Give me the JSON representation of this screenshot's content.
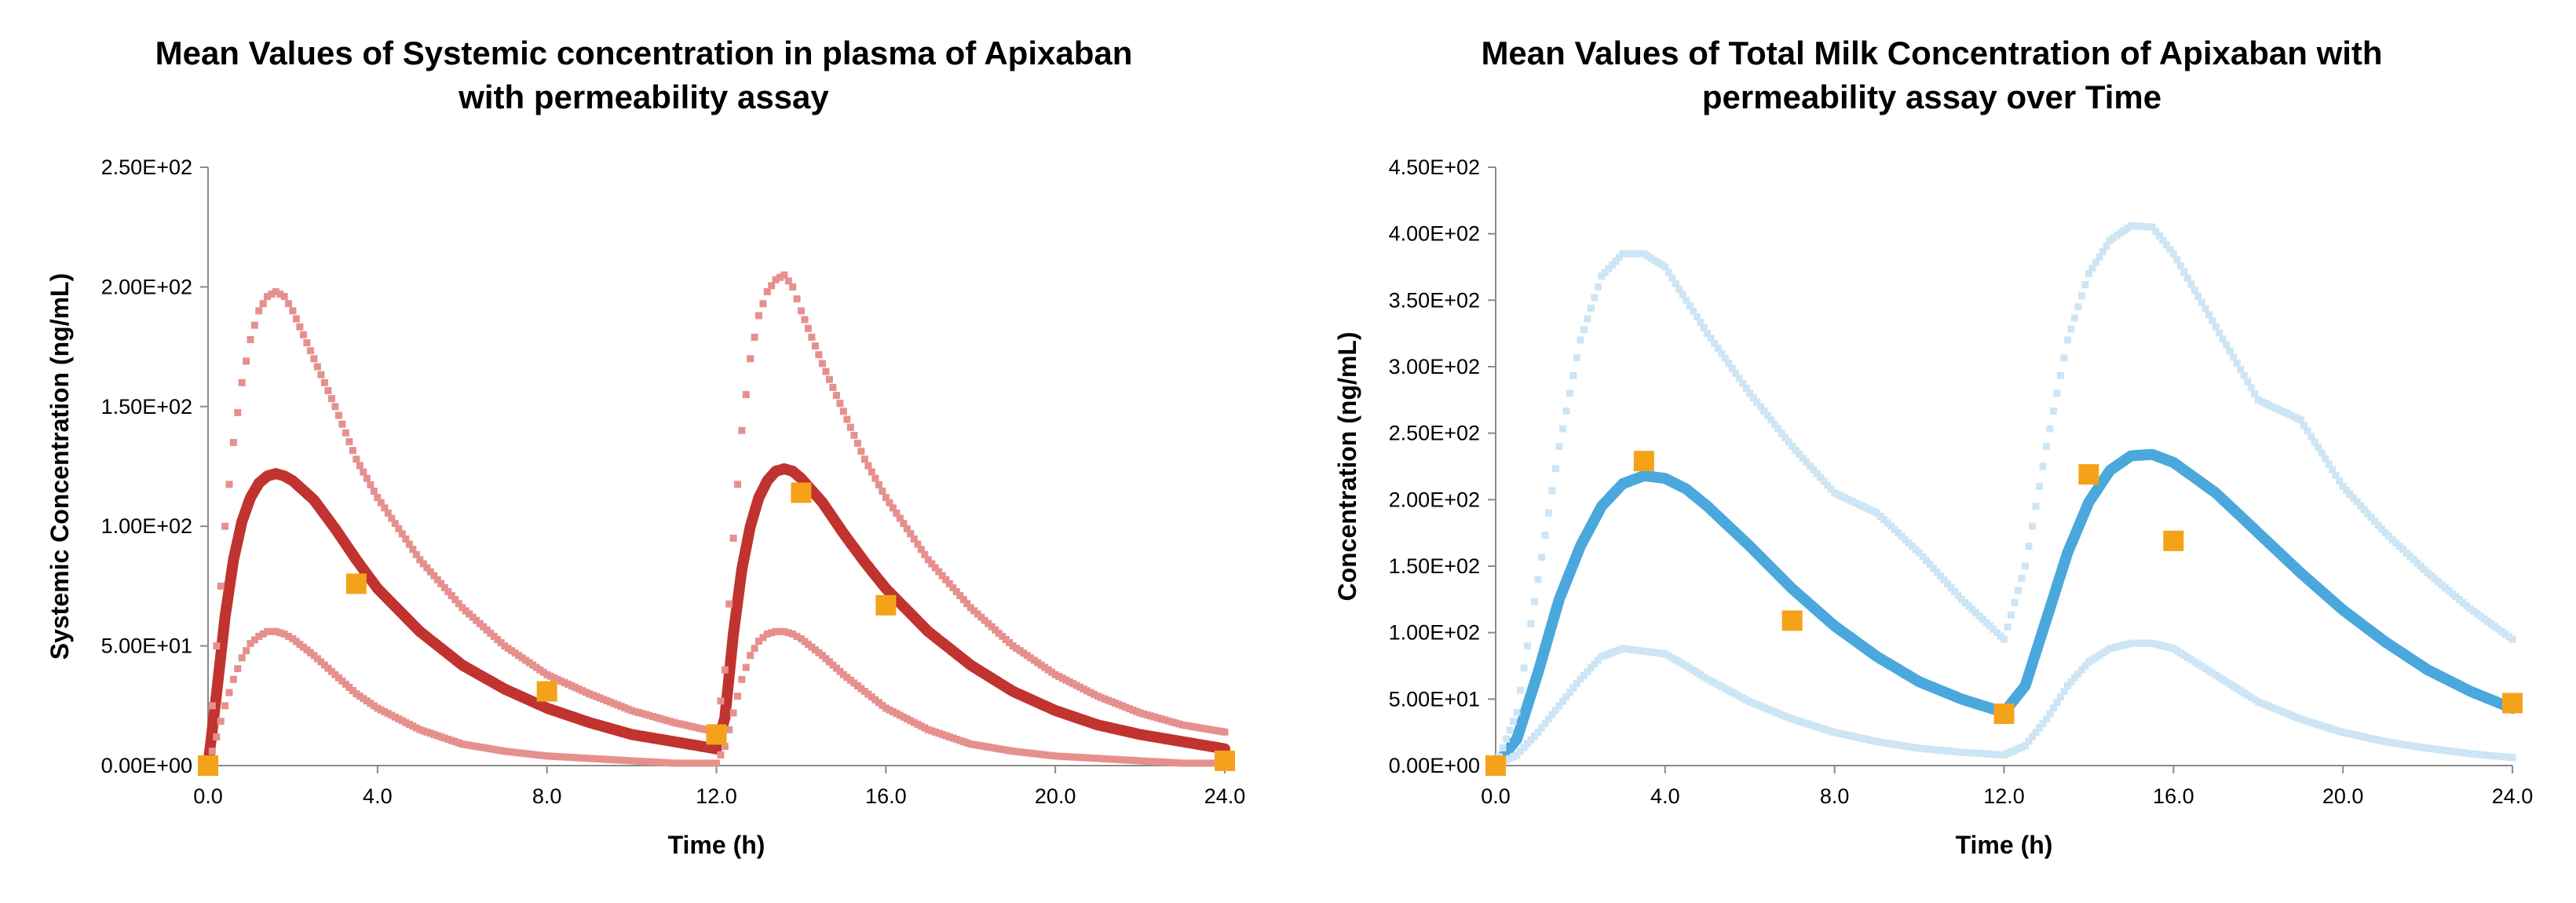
{
  "chart_data": [
    {
      "type": "line",
      "title": "Mean Values of Systemic concentration in plasma of Apixaban\nwith permeability assay",
      "xlabel": "Time (h)",
      "ylabel": "Systemic Concentration (ng/mL)",
      "xlim": [
        0,
        24
      ],
      "ylim": [
        0,
        250
      ],
      "x_ticks": [
        "0.0",
        "4.0",
        "8.0",
        "12.0",
        "16.0",
        "20.0",
        "24.0"
      ],
      "y_ticks": [
        "0.00E+00",
        "5.00E+01",
        "1.00E+02",
        "1.50E+02",
        "2.00E+02",
        "2.50E+02"
      ],
      "grid": false,
      "legend": "none",
      "colors": {
        "mean": "#C0332F",
        "bounds": "#E6908E",
        "observed": "#F5A21B"
      },
      "series": [
        {
          "role": "mean",
          "style": "thick-line",
          "color": "#C0332F",
          "x": [
            0,
            0.2,
            0.4,
            0.6,
            0.8,
            1.0,
            1.2,
            1.4,
            1.6,
            1.8,
            2.0,
            2.5,
            3.0,
            3.5,
            4.0,
            5.0,
            6.0,
            7.0,
            8.0,
            9.0,
            10.0,
            11.0,
            12.0,
            12.2,
            12.4,
            12.6,
            12.8,
            13.0,
            13.2,
            13.4,
            13.6,
            13.8,
            14.0,
            14.5,
            15.0,
            15.5,
            16.0,
            17.0,
            18.0,
            19.0,
            20.0,
            21.0,
            22.0,
            23.0,
            24.0
          ],
          "y": [
            0,
            30,
            62,
            86,
            102,
            112,
            118,
            121,
            122,
            121,
            119,
            111,
            99,
            86,
            74,
            56,
            42,
            32,
            24,
            18,
            13,
            10,
            7,
            20,
            55,
            82,
            100,
            112,
            119,
            123,
            124,
            123,
            120,
            110,
            97,
            85,
            74,
            56,
            42,
            31,
            23,
            17,
            13,
            10,
            7
          ]
        },
        {
          "role": "upper",
          "style": "dotted",
          "color": "#E6908E",
          "x": [
            0,
            0.2,
            0.4,
            0.6,
            0.8,
            1.0,
            1.2,
            1.4,
            1.6,
            1.8,
            2.0,
            2.5,
            3.0,
            3.5,
            4.0,
            5.0,
            6.0,
            7.0,
            8.0,
            9.0,
            10.0,
            11.0,
            12.0,
            12.2,
            12.4,
            12.6,
            12.8,
            13.0,
            13.2,
            13.4,
            13.6,
            13.8,
            14.0,
            14.5,
            15.0,
            15.5,
            16.0,
            17.0,
            18.0,
            19.0,
            20.0,
            21.0,
            22.0,
            23.0,
            24.0
          ],
          "y": [
            0,
            50,
            100,
            135,
            160,
            178,
            190,
            196,
            198,
            196,
            190,
            170,
            150,
            128,
            112,
            86,
            66,
            50,
            38,
            30,
            23,
            18,
            14,
            40,
            95,
            140,
            170,
            188,
            198,
            203,
            205,
            200,
            190,
            168,
            148,
            128,
            112,
            86,
            66,
            50,
            38,
            29,
            22,
            17,
            14
          ]
        },
        {
          "role": "lower",
          "style": "dotted",
          "color": "#E6908E",
          "x": [
            0,
            0.2,
            0.4,
            0.6,
            0.8,
            1.0,
            1.2,
            1.4,
            1.6,
            1.8,
            2.0,
            2.5,
            3.0,
            3.5,
            4.0,
            5.0,
            6.0,
            7.0,
            8.0,
            9.0,
            10.0,
            11.0,
            12.0,
            12.2,
            12.4,
            12.6,
            12.8,
            13.0,
            13.2,
            13.4,
            13.6,
            13.8,
            14.0,
            14.5,
            15.0,
            15.5,
            16.0,
            17.0,
            18.0,
            19.0,
            20.0,
            21.0,
            22.0,
            23.0,
            24.0
          ],
          "y": [
            0,
            12,
            25,
            36,
            45,
            51,
            54,
            56,
            56,
            55,
            53,
            46,
            38,
            30,
            24,
            15,
            9,
            6,
            4,
            3,
            2,
            1,
            1,
            8,
            22,
            36,
            46,
            52,
            55,
            56,
            56,
            55,
            53,
            46,
            38,
            31,
            24,
            15,
            9,
            6,
            4,
            3,
            2,
            1,
            1
          ]
        },
        {
          "role": "observed",
          "style": "square-markers",
          "color": "#F5A21B",
          "x": [
            0,
            3.5,
            8.0,
            12.0,
            14.0,
            16.0,
            24.0
          ],
          "y": [
            0,
            76,
            31,
            13,
            114,
            67,
            2
          ]
        }
      ]
    },
    {
      "type": "line",
      "title": "Mean Values of Total Milk Concentration of Apixaban with\npermeability assay  over Time",
      "xlabel": "Time (h)",
      "ylabel": "Concentration (ng/mL)",
      "xlim": [
        0,
        24
      ],
      "ylim": [
        0,
        450
      ],
      "x_ticks": [
        "0.0",
        "4.0",
        "8.0",
        "12.0",
        "16.0",
        "20.0",
        "24.0"
      ],
      "y_ticks": [
        "0.00E+00",
        "5.00E+01",
        "1.00E+02",
        "1.50E+02",
        "2.00E+02",
        "2.50E+02",
        "3.00E+02",
        "3.50E+02",
        "4.00E+02",
        "4.50E+02"
      ],
      "grid": false,
      "legend": "none",
      "colors": {
        "mean": "#4AA8DC",
        "bounds": "#CDE5F4",
        "observed": "#F5A21B"
      },
      "series": [
        {
          "role": "mean",
          "style": "thick-line",
          "color": "#4AA8DC",
          "x": [
            0,
            0.5,
            1.0,
            1.5,
            2.0,
            2.5,
            3.0,
            3.5,
            4.0,
            4.5,
            5.0,
            6.0,
            7.0,
            8.0,
            9.0,
            10.0,
            11.0,
            12.0,
            12.5,
            13.0,
            13.5,
            14.0,
            14.5,
            15.0,
            15.5,
            16.0,
            17.0,
            18.0,
            19.0,
            20.0,
            21.0,
            22.0,
            23.0,
            24.0
          ],
          "y": [
            0,
            20,
            70,
            125,
            165,
            195,
            212,
            218,
            216,
            208,
            195,
            165,
            133,
            105,
            82,
            63,
            50,
            40,
            60,
            110,
            160,
            198,
            222,
            233,
            234,
            228,
            205,
            175,
            145,
            117,
            93,
            72,
            56,
            43
          ]
        },
        {
          "role": "upper",
          "style": "dotted",
          "color": "#CDE5F4",
          "x": [
            0,
            0.5,
            1.0,
            1.5,
            2.0,
            2.5,
            3.0,
            3.5,
            4.0,
            4.5,
            5.0,
            6.0,
            7.0,
            8.0,
            9.0,
            10.0,
            11.0,
            12.0,
            12.5,
            13.0,
            13.5,
            14.0,
            14.5,
            15.0,
            15.5,
            16.0,
            17.0,
            18.0,
            19.0,
            20.0,
            21.0,
            22.0,
            23.0,
            24.0
          ],
          "y": [
            0,
            40,
            140,
            240,
            320,
            368,
            385,
            385,
            375,
            350,
            325,
            280,
            240,
            205,
            190,
            160,
            125,
            95,
            150,
            240,
            320,
            370,
            395,
            406,
            405,
            385,
            330,
            275,
            260,
            210,
            175,
            145,
            118,
            95
          ]
        },
        {
          "role": "lower",
          "style": "dotted",
          "color": "#CDE5F4",
          "x": [
            0,
            0.5,
            1.0,
            1.5,
            2.0,
            2.5,
            3.0,
            3.5,
            4.0,
            4.5,
            5.0,
            6.0,
            7.0,
            8.0,
            9.0,
            10.0,
            11.0,
            12.0,
            12.5,
            13.0,
            13.5,
            14.0,
            14.5,
            15.0,
            15.5,
            16.0,
            17.0,
            18.0,
            19.0,
            20.0,
            21.0,
            22.0,
            23.0,
            24.0
          ],
          "y": [
            0,
            8,
            25,
            45,
            65,
            82,
            88,
            86,
            84,
            75,
            65,
            48,
            35,
            25,
            18,
            13,
            10,
            8,
            15,
            35,
            60,
            78,
            88,
            92,
            92,
            88,
            68,
            48,
            35,
            25,
            18,
            13,
            9,
            6
          ]
        },
        {
          "role": "observed",
          "style": "square-markers",
          "color": "#F5A21B",
          "x": [
            0,
            3.5,
            7.0,
            12.0,
            14.0,
            16.0,
            24.0
          ],
          "y": [
            0,
            229,
            109,
            39,
            219,
            169,
            47
          ]
        }
      ]
    }
  ]
}
